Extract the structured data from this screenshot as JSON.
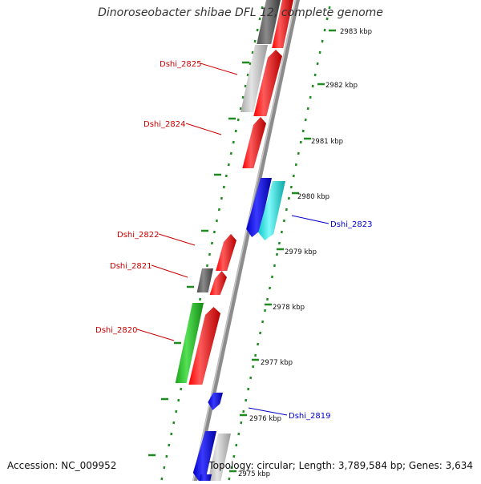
{
  "title": "Dinoroseobacter shibae DFL 12, complete genome",
  "footer": {
    "accession": "Accession: NC_009952",
    "summary": "Topology: circular; Length: 3,789,584 bp; Genes: 3,634"
  },
  "colors": {
    "backbone": "#8c8c8c",
    "ruler": "#1f8a1f",
    "label_forward": "#cc0000",
    "label_reverse": "#0000cc",
    "red": "#ff0000",
    "grey": "#606060",
    "light_grey": "#c0c0c0",
    "green": "#22c322",
    "blue": "#1414ff",
    "cyan": "#18e6e6"
  },
  "ruler_ticks": [
    "2983 kbp",
    "2982 kbp",
    "2981 kbp",
    "2980 kbp",
    "2979 kbp",
    "2978 kbp",
    "2977 kbp",
    "2976 kbp",
    "2975 kbp"
  ],
  "gene_labels": [
    {
      "id": "Dshi_2825",
      "strand": "forward"
    },
    {
      "id": "Dshi_2824",
      "strand": "forward"
    },
    {
      "id": "Dshi_2823",
      "strand": "reverse"
    },
    {
      "id": "Dshi_2822",
      "strand": "forward"
    },
    {
      "id": "Dshi_2821",
      "strand": "forward"
    },
    {
      "id": "Dshi_2820",
      "strand": "forward"
    },
    {
      "id": "Dshi_2819",
      "strand": "reverse"
    }
  ]
}
